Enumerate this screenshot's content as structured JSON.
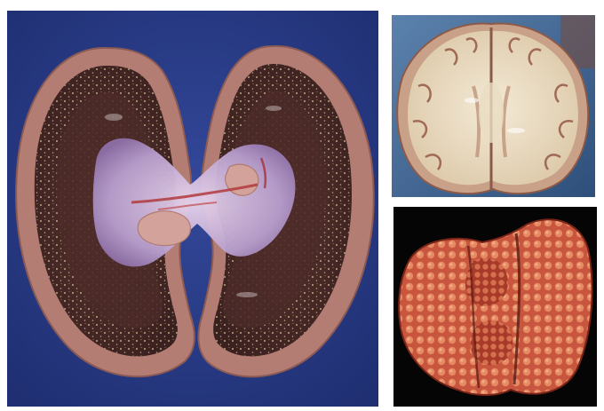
{
  "figure": {
    "panels": [
      {
        "id": "kidney",
        "depicts": "bisected-kidney-gross-specimen",
        "background_color": "#2b3f8c"
      },
      {
        "id": "brain",
        "depicts": "axial-brain-slice-gross-specimen",
        "background_color": "#4a6f9a"
      },
      {
        "id": "liver",
        "depicts": "nodular-organ-gross-specimen",
        "background_color": "#050505"
      }
    ]
  }
}
